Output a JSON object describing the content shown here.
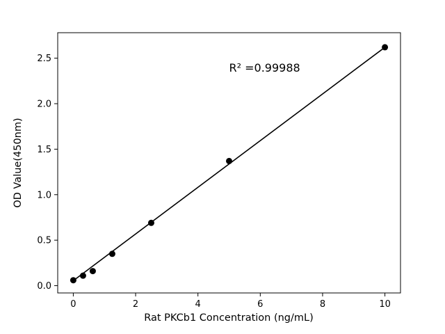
{
  "chart_data": {
    "type": "scatter",
    "title": "",
    "xlabel": "Rat PKCb1 Concentration (ng/mL)",
    "ylabel": "OD Value(450nm)",
    "annotation": {
      "text": "R² =0.99988",
      "x": 5.0,
      "y": 2.35
    },
    "points": {
      "x": [
        0,
        0.3125,
        0.625,
        1.25,
        2.5,
        5,
        10
      ],
      "y": [
        0.06,
        0.11,
        0.16,
        0.35,
        0.69,
        1.37,
        2.62
      ]
    },
    "fit_line": {
      "x": [
        0,
        10
      ],
      "y": [
        0.055,
        2.62
      ]
    },
    "xlim": [
      -0.5,
      10.5
    ],
    "ylim": [
      -0.08,
      2.78
    ],
    "xticks": [
      0,
      2,
      4,
      6,
      8,
      10
    ],
    "yticks": [
      0.0,
      0.5,
      1.0,
      1.5,
      2.0,
      2.5
    ],
    "marker_color": "#000000",
    "line_color": "#000000",
    "background": "#ffffff",
    "legend": null,
    "grid": false
  }
}
